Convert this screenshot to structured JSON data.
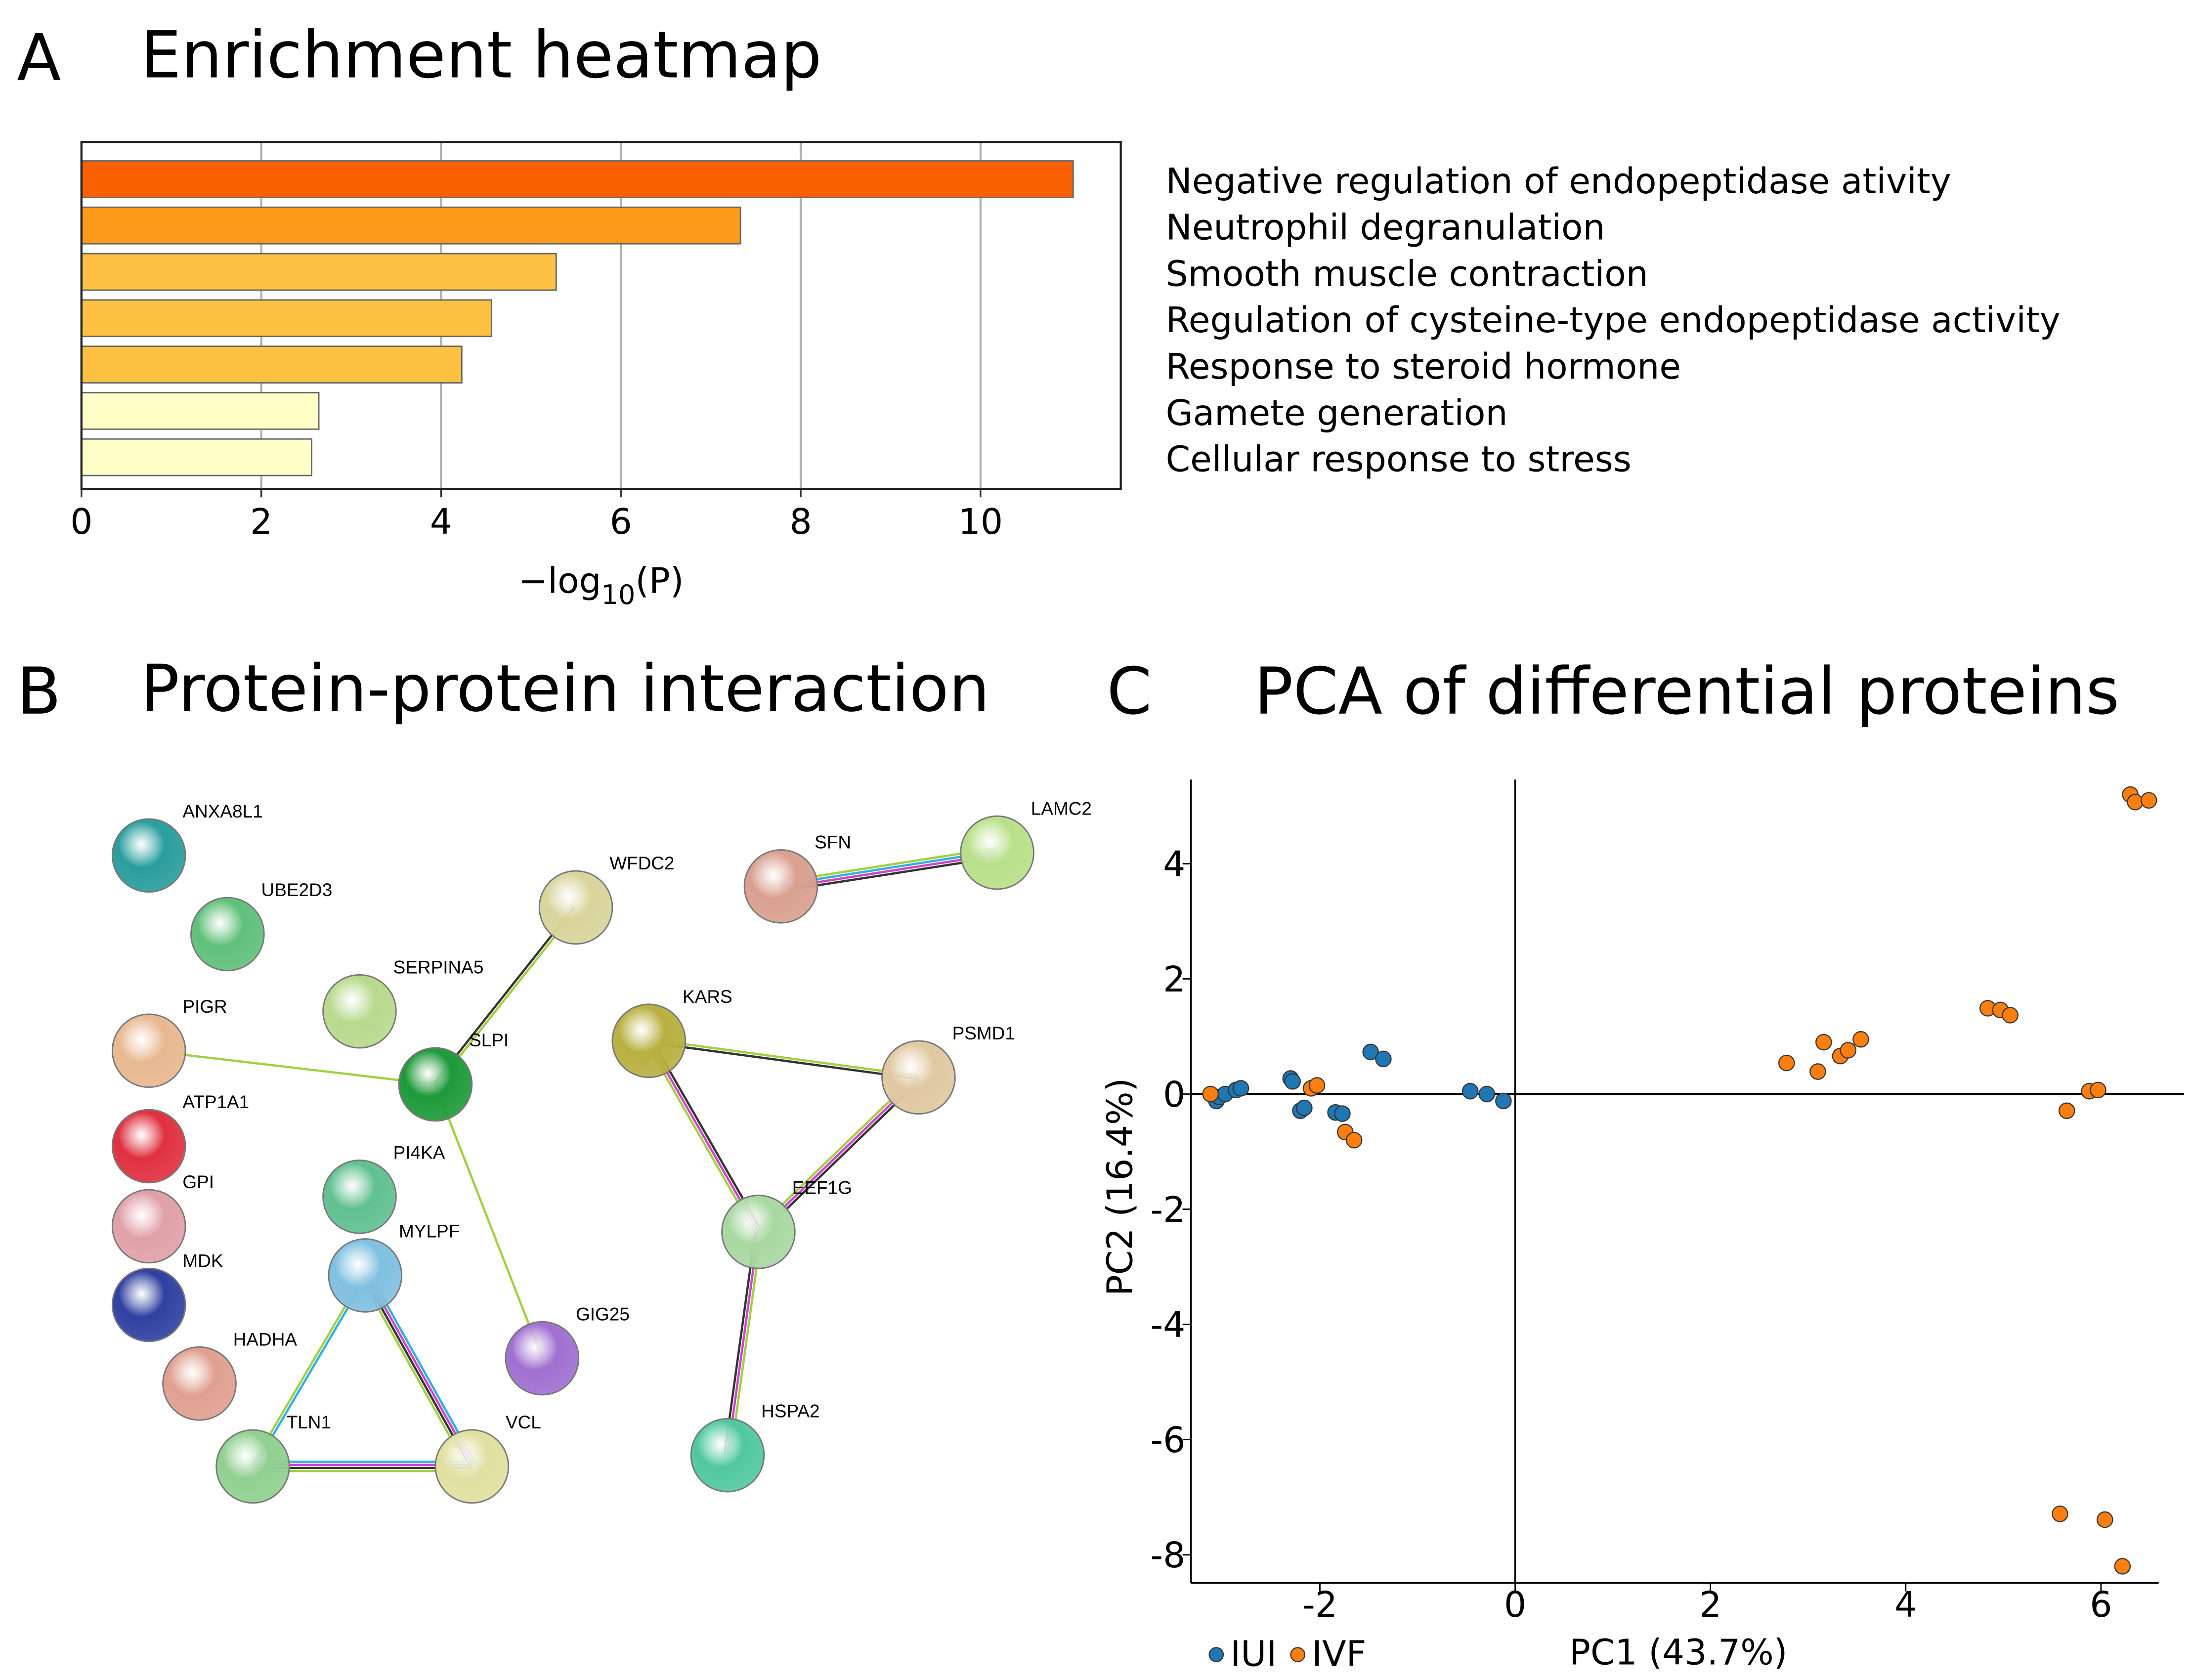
{
  "chart_data": [
    {
      "type": "barh",
      "panel": "A",
      "title": "Enrichment heatmap",
      "xlabel": {
        "main": "−log",
        "sub": "10",
        "end": "(P)"
      },
      "categories": [
        "Negative regulation of endopeptidase ativity",
        "Neutrophil degranulation",
        "Smooth muscle contraction",
        "Regulation of cysteine-type endopeptidase activity",
        "Response to steroid hormone",
        "Gamete generation",
        "Cellular response to stress"
      ],
      "values": [
        11.03,
        7.33,
        5.28,
        4.56,
        4.23,
        2.64,
        2.56
      ],
      "colors": [
        "#f96000",
        "#fd9a1a",
        "#fec141",
        "#fec141",
        "#fec141",
        "#ffffc8",
        "#ffffc8"
      ],
      "xlim": [
        0,
        11.56
      ],
      "xticks": [
        0,
        2,
        4,
        6,
        8,
        10
      ],
      "grid": true
    },
    {
      "type": "scatter",
      "panel": "C",
      "title": "PCA of differential proteins",
      "xlabel": "PC1 (43.7%)",
      "ylabel": "PC2 (16.4%)",
      "xlim": [
        -3.32,
        6.85
      ],
      "ylim": [
        -8.49,
        5.46
      ],
      "xticks": [
        -2,
        0,
        2,
        4,
        6
      ],
      "yticks": [
        4,
        2,
        0,
        -2,
        -4,
        -6,
        -8
      ],
      "legend": "bottom-left",
      "series": [
        {
          "name": "IUI",
          "color": "#1f77b4",
          "x": [
            -3.06,
            -3.03,
            -2.97,
            -2.86,
            -2.81,
            -2.3,
            -2.28,
            -2.2,
            -2.16,
            -1.84,
            -1.77,
            -1.48,
            -1.35,
            -0.46,
            -0.29,
            -0.12
          ],
          "y": [
            -0.12,
            -0.05,
            0,
            0.07,
            0.1,
            0.27,
            0.22,
            -0.29,
            -0.24,
            -0.32,
            -0.34,
            0.73,
            0.61,
            0.05,
            0,
            -0.12
          ]
        },
        {
          "name": "IVF",
          "color": "#ff7f0e",
          "x": [
            -3.12,
            -2.09,
            -2.03,
            -1.74,
            -1.65,
            2.78,
            3.1,
            3.16,
            3.33,
            3.41,
            3.54,
            4.84,
            4.97,
            5.07,
            5.65,
            5.88,
            5.97,
            6.3,
            6.35,
            6.49,
            5.58,
            6.04,
            6.22
          ],
          "y": [
            0,
            0.1,
            0.15,
            -0.66,
            -0.8,
            0.54,
            0.39,
            0.9,
            0.66,
            0.76,
            0.95,
            1.49,
            1.46,
            1.37,
            -0.29,
            0.05,
            0.07,
            5.2,
            5.07,
            5.1,
            -7.29,
            -7.39,
            -8.2
          ]
        }
      ]
    }
  ],
  "network": {
    "panel": "B",
    "title": "Protein-protein interaction",
    "nodes": [
      {
        "label": "ANXA8L1"
      },
      {
        "label": "UBE2D3"
      },
      {
        "label": "SERPINA5"
      },
      {
        "label": "WFDC2"
      },
      {
        "label": "SFN"
      },
      {
        "label": "LAMC2"
      },
      {
        "label": "PIGR"
      },
      {
        "label": "SLPI"
      },
      {
        "label": "KARS"
      },
      {
        "label": "PSMD1"
      },
      {
        "label": "ATP1A1"
      },
      {
        "label": "GPI"
      },
      {
        "label": "PI4KA"
      },
      {
        "label": "MYLPF"
      },
      {
        "label": "EEF1G"
      },
      {
        "label": "MDK"
      },
      {
        "label": "GIG25"
      },
      {
        "label": "HADHA"
      },
      {
        "label": "HSPA2"
      },
      {
        "label": "TLN1"
      },
      {
        "label": "VCL"
      }
    ]
  }
}
